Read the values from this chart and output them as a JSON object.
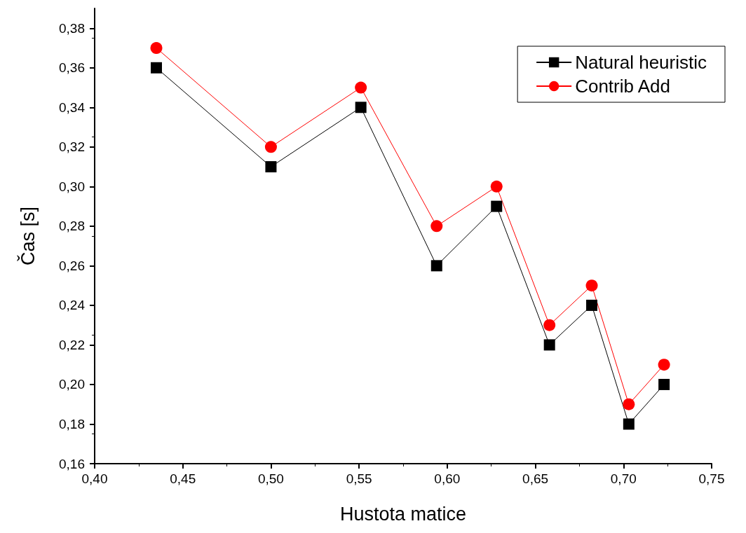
{
  "chart_data": {
    "type": "line",
    "xlabel": "Hustota matice",
    "ylabel": "Čas [s]",
    "xlim": [
      0.4,
      0.75
    ],
    "ylim": [
      0.16,
      0.39
    ],
    "xticks": [
      {
        "value": 0.4,
        "label": "0,40"
      },
      {
        "value": 0.45,
        "label": "0,45"
      },
      {
        "value": 0.5,
        "label": "0,50"
      },
      {
        "value": 0.55,
        "label": "0,55"
      },
      {
        "value": 0.6,
        "label": "0,60"
      },
      {
        "value": 0.65,
        "label": "0,65"
      },
      {
        "value": 0.7,
        "label": "0,70"
      },
      {
        "value": 0.75,
        "label": "0,75"
      }
    ],
    "yticks": [
      {
        "value": 0.16,
        "label": "0,16"
      },
      {
        "value": 0.18,
        "label": "0,18"
      },
      {
        "value": 0.2,
        "label": "0,20"
      },
      {
        "value": 0.22,
        "label": "0,22"
      },
      {
        "value": 0.24,
        "label": "0,24"
      },
      {
        "value": 0.26,
        "label": "0,26"
      },
      {
        "value": 0.28,
        "label": "0,28"
      },
      {
        "value": 0.3,
        "label": "0,30"
      },
      {
        "value": 0.32,
        "label": "0,32"
      },
      {
        "value": 0.34,
        "label": "0,34"
      },
      {
        "value": 0.36,
        "label": "0,36"
      },
      {
        "value": 0.38,
        "label": "0,38"
      }
    ],
    "x": [
      0.435,
      0.5,
      0.551,
      0.594,
      0.628,
      0.658,
      0.682,
      0.703,
      0.723
    ],
    "series": [
      {
        "name": "Natural heuristic",
        "color": "#000000",
        "marker": "square",
        "values": [
          0.36,
          0.31,
          0.34,
          0.26,
          0.29,
          0.22,
          0.24,
          0.18,
          0.2
        ]
      },
      {
        "name": "Contrib Add",
        "color": "#ff0000",
        "marker": "circle",
        "values": [
          0.37,
          0.32,
          0.35,
          0.28,
          0.3,
          0.23,
          0.25,
          0.19,
          0.21
        ]
      }
    ],
    "grid": false,
    "legend": "top right",
    "line_style": "solid"
  }
}
